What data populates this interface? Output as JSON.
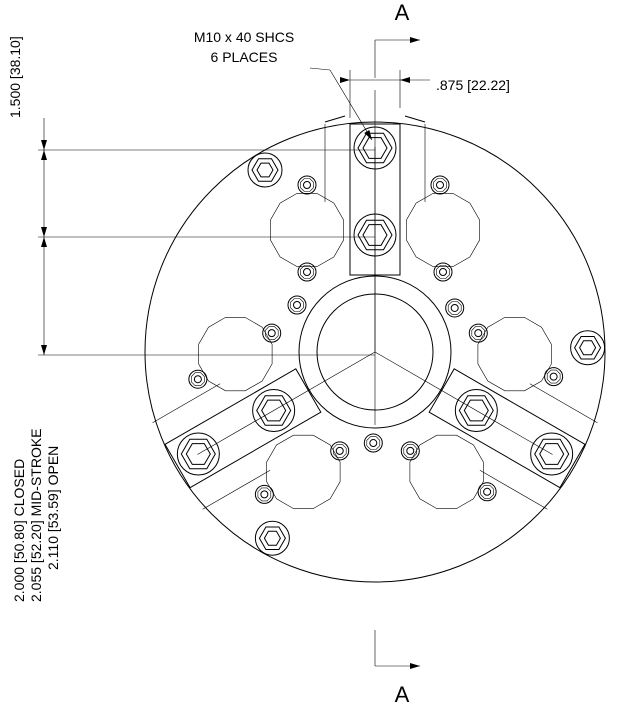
{
  "section_top": "A",
  "section_bottom": "A",
  "callout": {
    "line1": "M10 x 40 SHCS",
    "line2": "6 PLACES"
  },
  "width_dim": ".875 [22.22]",
  "height_dim": "1.500 [38.10]",
  "stroke_dims": [
    "2.000 [50.80] CLOSED",
    "2.055 [52.20] MID-STROKE",
    "2.110 [53.59] OPEN"
  ]
}
